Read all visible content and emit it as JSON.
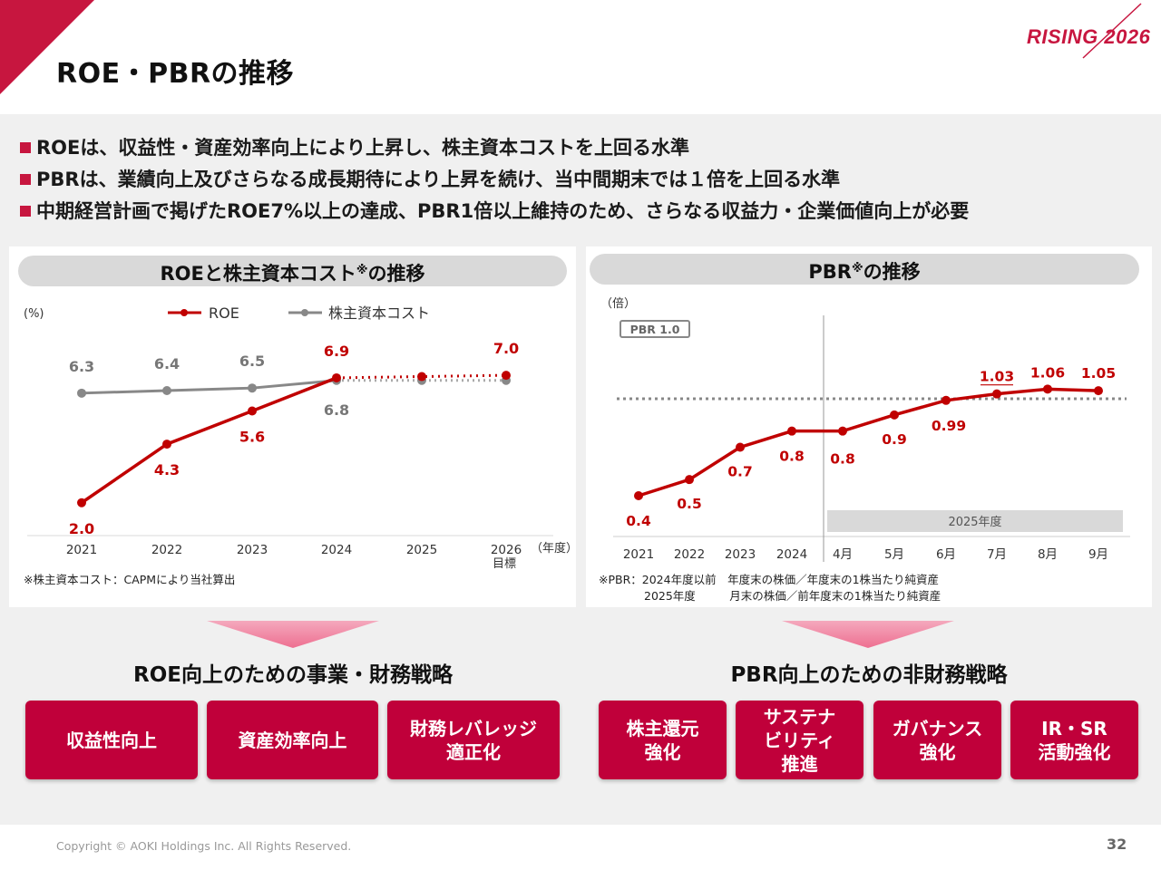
{
  "title": "ROE・PBRの推移",
  "brand": "RISING 2026",
  "bullets": [
    "ROEは、収益性・資産効率向上により上昇し、株主資本コストを上回る水準",
    "PBRは、業績向上及びさらなる成長期待により上昇を続け、当中間期末では１倍を上回る水準",
    "中期経営計画で掲げたROE7%以上の達成、PBR1倍以上維持のため、さらなる収益力・企業価値向上が必要"
  ],
  "roe_panel": {
    "title": "ROEと株主資本コスト",
    "title_mark": "※",
    "title_suffix": "の推移",
    "unit": "(%)",
    "note": "※株主資本コスト：CAPMにより当社算出"
  },
  "pbr_panel": {
    "title": "PBR",
    "title_mark": "※",
    "title_suffix": "の推移",
    "unit": "（倍）",
    "note": "※PBR：2024年度以前　年度末の株価／年度末の1株当たり純資産\n　　　　2025年度　　　月末の株価／前年度末の1株当たり純資産"
  },
  "chart_data": [
    {
      "type": "line",
      "title": "ROEと株主資本コストの推移",
      "ylabel": "(%)",
      "xlabel": "（年度）",
      "categories": [
        "2021",
        "2022",
        "2023",
        "2024",
        "2025",
        "2026"
      ],
      "category_sublabels": [
        "",
        "",
        "",
        "",
        "",
        "目標"
      ],
      "ylim": [
        0,
        8
      ],
      "series": [
        {
          "name": "ROE",
          "color": "#c00000",
          "values": [
            2.0,
            4.3,
            5.6,
            6.9,
            null,
            7.0
          ],
          "solid_until_index": 3,
          "dotted_values": [
            6.9,
            6.95,
            7.0
          ],
          "labels": [
            "2.0",
            "4.3",
            "5.6",
            "6.9",
            "",
            "7.0"
          ]
        },
        {
          "name": "株主資本コスト",
          "color": "#888888",
          "values": [
            6.3,
            6.4,
            6.5,
            6.8,
            6.8,
            6.8
          ],
          "solid_until_index": 3,
          "labels": [
            "6.3",
            "6.4",
            "6.5",
            "6.8",
            "",
            ""
          ]
        }
      ]
    },
    {
      "type": "line",
      "title": "PBRの推移",
      "ylabel": "（倍）",
      "categories": [
        "2021",
        "2022",
        "2023",
        "2024",
        "4月",
        "5月",
        "6月",
        "7月",
        "8月",
        "9月"
      ],
      "group_label": "2025年度",
      "reference_line": {
        "label": "PBR 1.0",
        "value": 1.0
      },
      "ylim": [
        0,
        1.2
      ],
      "series": [
        {
          "name": "PBR",
          "color": "#c00000",
          "values": [
            0.4,
            0.5,
            0.7,
            0.8,
            0.8,
            0.9,
            0.99,
            1.03,
            1.06,
            1.05
          ],
          "labels": [
            "0.4",
            "0.5",
            "0.7",
            "0.8",
            "0.8",
            "0.9",
            "0.99",
            "1.03",
            "1.06",
            "1.05"
          ]
        }
      ]
    }
  ],
  "roe_strategy": {
    "title": "ROE向上のための事業・財務戦略",
    "buttons": [
      "収益性向上",
      "資産効率向上",
      "財務レバレッジ\n適正化"
    ]
  },
  "pbr_strategy": {
    "title": "PBR向上のための非財務戦略",
    "buttons": [
      "株主還元\n強化",
      "サステナ\nビリティ\n推進",
      "ガバナンス\n強化",
      "IR・SR\n活動強化"
    ]
  },
  "footer": "Copyright © AOKI Holdings Inc. All Rights Reserved.",
  "page_number": "32"
}
